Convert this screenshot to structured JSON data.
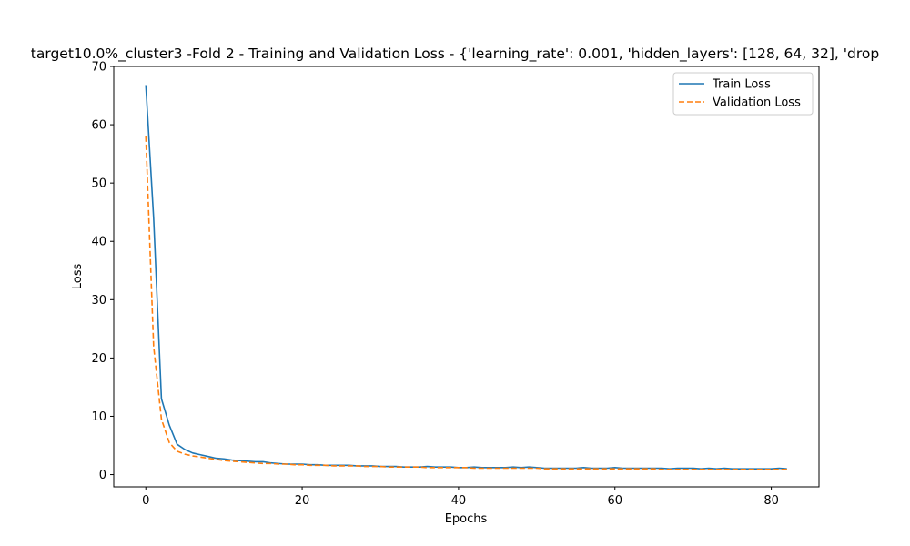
{
  "chart_data": {
    "type": "line",
    "title": "target10.0%_cluster3 -Fold 2 - Training and Validation Loss - {'learning_rate': 0.001, 'hidden_layers': [128, 64, 32], 'drop",
    "xlabel": "Epochs",
    "ylabel": "Loss",
    "xlim": [
      -4.1,
      86.1
    ],
    "ylim": [
      -2.1,
      70
    ],
    "xticks": [
      0,
      20,
      40,
      60,
      80
    ],
    "yticks": [
      0,
      10,
      20,
      30,
      40,
      50,
      60,
      70
    ],
    "legend_position": "upper-right",
    "grid": false,
    "series": [
      {
        "name": "Train Loss",
        "color": "#1f77b4",
        "style": "solid",
        "x": [
          0,
          1,
          2,
          3,
          4,
          5,
          6,
          7,
          8,
          9,
          10,
          11,
          12,
          13,
          14,
          15,
          16,
          17,
          18,
          19,
          20,
          21,
          22,
          23,
          24,
          25,
          26,
          27,
          28,
          29,
          30,
          31,
          32,
          33,
          34,
          35,
          36,
          37,
          38,
          39,
          40,
          41,
          42,
          43,
          44,
          45,
          46,
          47,
          48,
          49,
          50,
          51,
          52,
          53,
          54,
          55,
          56,
          57,
          58,
          59,
          60,
          61,
          62,
          63,
          64,
          65,
          66,
          67,
          68,
          69,
          70,
          71,
          72,
          73,
          74,
          75,
          76,
          77,
          78,
          79,
          80,
          81,
          82
        ],
        "values": [
          66.8,
          44.0,
          13.0,
          8.5,
          5.2,
          4.3,
          3.7,
          3.4,
          3.1,
          2.8,
          2.7,
          2.5,
          2.4,
          2.3,
          2.2,
          2.2,
          2.0,
          1.9,
          1.8,
          1.8,
          1.8,
          1.7,
          1.7,
          1.6,
          1.6,
          1.6,
          1.6,
          1.5,
          1.5,
          1.5,
          1.4,
          1.4,
          1.4,
          1.3,
          1.3,
          1.3,
          1.4,
          1.3,
          1.3,
          1.3,
          1.2,
          1.2,
          1.3,
          1.2,
          1.2,
          1.2,
          1.2,
          1.3,
          1.2,
          1.3,
          1.2,
          1.1,
          1.1,
          1.1,
          1.1,
          1.1,
          1.2,
          1.1,
          1.1,
          1.1,
          1.2,
          1.1,
          1.1,
          1.1,
          1.1,
          1.1,
          1.1,
          1.0,
          1.1,
          1.1,
          1.1,
          1.0,
          1.1,
          1.0,
          1.1,
          1.0,
          1.0,
          1.0,
          1.0,
          1.0,
          1.0,
          1.1,
          1.0
        ]
      },
      {
        "name": "Validation Loss",
        "color": "#ff7f0e",
        "style": "dashed",
        "x": [
          0,
          1,
          2,
          3,
          4,
          5,
          6,
          7,
          8,
          9,
          10,
          11,
          12,
          13,
          14,
          15,
          16,
          17,
          18,
          19,
          20,
          21,
          22,
          23,
          24,
          25,
          26,
          27,
          28,
          29,
          30,
          31,
          32,
          33,
          34,
          35,
          36,
          37,
          38,
          39,
          40,
          41,
          42,
          43,
          44,
          45,
          46,
          47,
          48,
          49,
          50,
          51,
          52,
          53,
          54,
          55,
          56,
          57,
          58,
          59,
          60,
          61,
          62,
          63,
          64,
          65,
          66,
          67,
          68,
          69,
          70,
          71,
          72,
          73,
          74,
          75,
          76,
          77,
          78,
          79,
          80,
          81,
          82
        ],
        "values": [
          58.0,
          22.0,
          9.5,
          5.5,
          4.0,
          3.5,
          3.2,
          3.0,
          2.8,
          2.6,
          2.4,
          2.3,
          2.2,
          2.1,
          2.0,
          1.9,
          1.9,
          1.8,
          1.8,
          1.7,
          1.7,
          1.6,
          1.6,
          1.6,
          1.5,
          1.5,
          1.5,
          1.5,
          1.4,
          1.4,
          1.4,
          1.3,
          1.3,
          1.3,
          1.3,
          1.3,
          1.2,
          1.2,
          1.2,
          1.2,
          1.2,
          1.2,
          1.1,
          1.1,
          1.1,
          1.1,
          1.1,
          1.1,
          1.1,
          1.1,
          1.1,
          1.0,
          1.0,
          1.0,
          1.0,
          1.0,
          1.0,
          1.0,
          1.0,
          1.0,
          1.0,
          1.0,
          1.0,
          1.0,
          1.0,
          1.0,
          0.9,
          0.9,
          0.9,
          0.9,
          0.9,
          0.9,
          0.9,
          0.9,
          0.9,
          0.9,
          0.9,
          0.9,
          0.9,
          0.9,
          0.9,
          0.9,
          0.9
        ]
      }
    ]
  }
}
